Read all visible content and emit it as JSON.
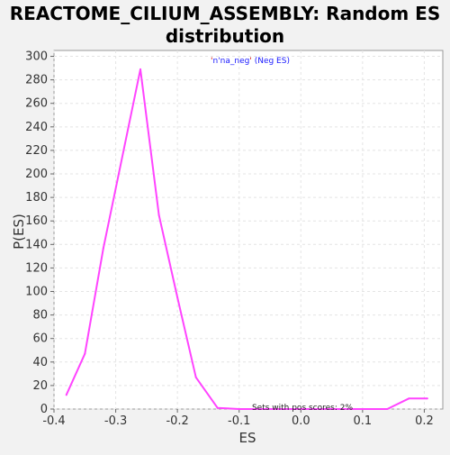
{
  "chart_data": {
    "type": "line",
    "title_line1": "REACTOME_CILIUM_ASSEMBLY: Random ES",
    "title_line2": "distribution",
    "xlabel": "ES",
    "ylabel": "P(ES)",
    "xlim": [
      -0.4,
      0.23
    ],
    "ylim": [
      0,
      305
    ],
    "xticks": [
      -0.4,
      -0.3,
      -0.2,
      -0.1,
      0.0,
      0.1,
      0.2
    ],
    "xtick_labels": [
      "-0.4",
      "-0.3",
      "-0.2",
      "-0.1",
      "0.0",
      "0.1",
      "0.2"
    ],
    "yticks": [
      0,
      20,
      40,
      60,
      80,
      100,
      120,
      140,
      160,
      180,
      200,
      220,
      240,
      260,
      280,
      300
    ],
    "ytick_labels": [
      "0",
      "20",
      "40",
      "60",
      "80",
      "100",
      "120",
      "140",
      "160",
      "180",
      "200",
      "220",
      "240",
      "260",
      "280",
      "300"
    ],
    "grid": true,
    "legend": {
      "quote": "'",
      "name": "n'na_neg",
      "quote2": "'",
      "suffix": " (Neg ES)",
      "placement": "top-center"
    },
    "annotation": "Sets with pos scores: 2%",
    "series": [
      {
        "name": "n'na_neg",
        "color": "#ff44ff",
        "x": [
          -0.38,
          -0.35,
          -0.32,
          -0.26,
          -0.23,
          -0.2,
          -0.17,
          -0.135,
          -0.1,
          -0.05,
          0.0,
          0.05,
          0.1,
          0.14,
          0.175,
          0.205
        ],
        "y": [
          12,
          47,
          137,
          289,
          165,
          95,
          27,
          1,
          0,
          0,
          0,
          0,
          0,
          0,
          9,
          9
        ]
      }
    ]
  }
}
